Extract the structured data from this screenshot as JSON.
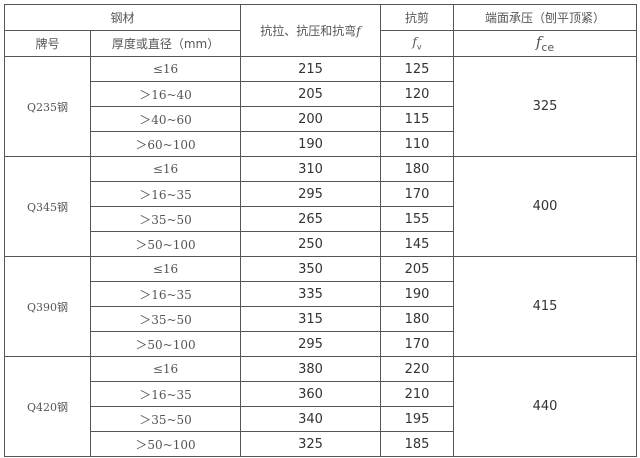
{
  "header": {
    "steel": "钢材",
    "grade": "牌号",
    "thickness": "厚度或直径（mm）",
    "tension": "抗拉、抗压和抗弯",
    "tension_symbol": "f",
    "shear": "抗剪",
    "shear_symbol": "f",
    "shear_sub": "v",
    "bearing": "端面承压（刨平顶紧）",
    "bearing_symbol": "f",
    "bearing_sub": "ce"
  },
  "groups": [
    {
      "grade": "Q235钢",
      "bearing": "325",
      "rows": [
        {
          "range": "≤16",
          "f": "215",
          "fv": "125"
        },
        {
          "range": "＞16~40",
          "f": "205",
          "fv": "120"
        },
        {
          "range": "＞40~60",
          "f": "200",
          "fv": "115"
        },
        {
          "range": "＞60~100",
          "f": "190",
          "fv": "110"
        }
      ]
    },
    {
      "grade": "Q345钢",
      "bearing": "400",
      "rows": [
        {
          "range": "≤16",
          "f": "310",
          "fv": "180"
        },
        {
          "range": "＞16~35",
          "f": "295",
          "fv": "170"
        },
        {
          "range": "＞35~50",
          "f": "265",
          "fv": "155"
        },
        {
          "range": "＞50~100",
          "f": "250",
          "fv": "145"
        }
      ]
    },
    {
      "grade": "Q390钢",
      "bearing": "415",
      "rows": [
        {
          "range": "≤16",
          "f": "350",
          "fv": "205"
        },
        {
          "range": "＞16~35",
          "f": "335",
          "fv": "190"
        },
        {
          "range": "＞35~50",
          "f": "315",
          "fv": "180"
        },
        {
          "range": "＞50~100",
          "f": "295",
          "fv": "170"
        }
      ]
    },
    {
      "grade": "Q420钢",
      "bearing": "440",
      "rows": [
        {
          "range": "≤16",
          "f": "380",
          "fv": "220"
        },
        {
          "range": "＞16~35",
          "f": "360",
          "fv": "210"
        },
        {
          "range": "＞35~50",
          "f": "340",
          "fv": "195"
        },
        {
          "range": "＞50~100",
          "f": "325",
          "fv": "185"
        }
      ]
    }
  ]
}
